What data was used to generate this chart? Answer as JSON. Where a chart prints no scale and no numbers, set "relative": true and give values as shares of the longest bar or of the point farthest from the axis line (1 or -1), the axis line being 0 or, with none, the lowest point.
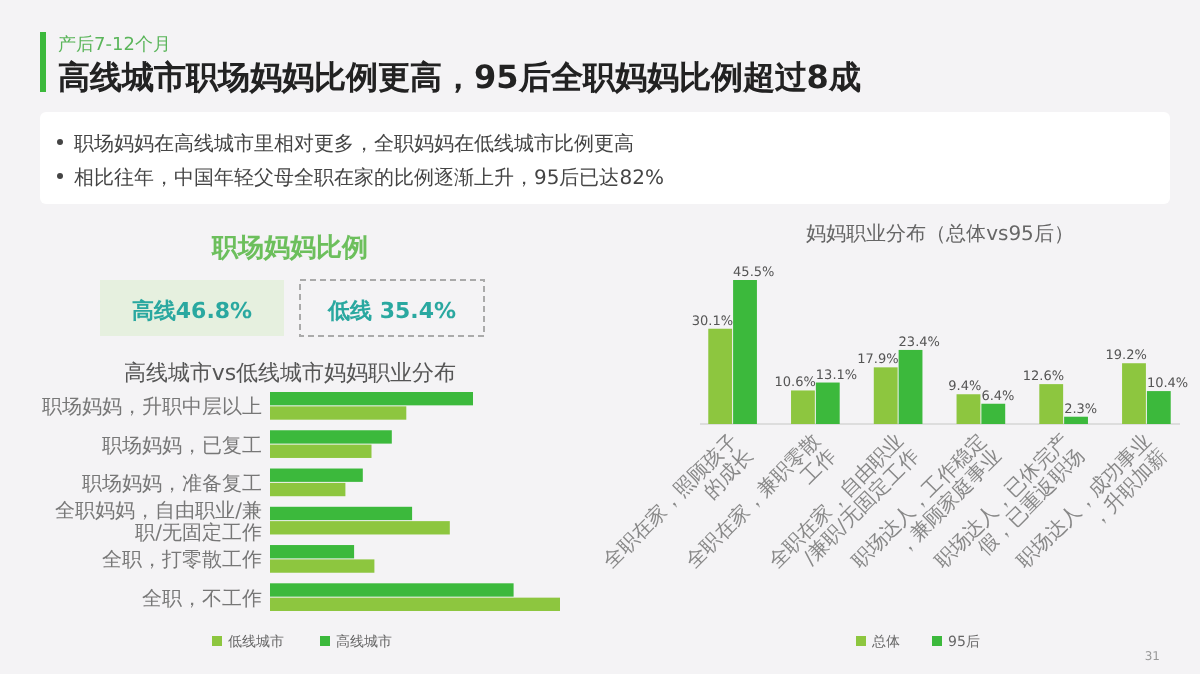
{
  "chart_data": [
    {
      "type": "other",
      "subtitle": "产后7-12个月",
      "title": "高线城市职场妈妈比例更高，95后全职妈妈比例超过8成",
      "annotations": [
        "职场妈妈在高线城市里相对更多，全职妈妈在低线城市比例更高",
        "相比往年，中国年轻父母全职在家的比例逐渐上升，95后已达82%",
        "31"
      ]
    },
    {
      "type": "other",
      "title": "职场妈妈比例",
      "annotations": [
        "高线46.8%",
        "低线 35.4%"
      ]
    },
    {
      "type": "bar",
      "orientation": "horizontal",
      "relative": true,
      "title": "高线城市vs低线城市妈妈职业分布",
      "legend": "bottom",
      "categories": [
        "职场妈妈，升职中层以上",
        "职场妈妈，已复工",
        "职场妈妈，准备复工",
        "全职妈妈，自由职业/兼职/无固定工作",
        "全职，打零散工作",
        "全职，不工作"
      ],
      "series": [
        {
          "name": "低线城市",
          "color": "#8dc63f",
          "values": [
            0.47,
            0.35,
            0.26,
            0.62,
            0.36,
            1
          ]
        },
        {
          "name": "高线城市",
          "color": "#3cb93c",
          "values": [
            0.7,
            0.42,
            0.32,
            0.49,
            0.29,
            0.84
          ]
        }
      ]
    },
    {
      "type": "bar",
      "title": "妈妈职业分布（总体vs95后）",
      "legend": "bottom",
      "categories": [
        "全职在家，照顾孩子的成长",
        "全职在家，兼职零散工作",
        "全职在家，自由职业/兼职/无固定工作",
        "职场达人，工作稳定，兼顾家庭事业",
        "职场达人，已休完产假，已重返职场",
        "职场达人，成功事业，升职加薪"
      ],
      "series": [
        {
          "name": "总体",
          "color": "#8dc63f",
          "values": [
            30.1,
            10.6,
            17.9,
            9.4,
            12.6,
            19.2
          ],
          "value_labels": [
            "30.1%",
            "10.6%",
            "17.9%",
            "9.4%",
            "12.6%",
            "19.2%"
          ]
        },
        {
          "name": "95后",
          "color": "#3cb93c",
          "values": [
            45.5,
            13.1,
            23.4,
            6.4,
            2.3,
            10.4
          ],
          "value_labels": [
            "45.5%",
            "13.1%",
            "23.4%",
            "6.4%",
            "2.3%",
            "10.4%"
          ]
        }
      ]
    }
  ]
}
